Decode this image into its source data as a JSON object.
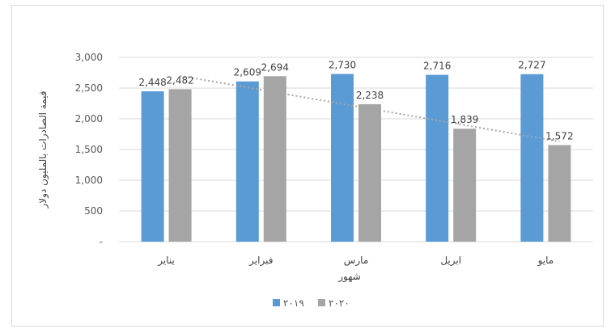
{
  "chart_data": {
    "type": "bar",
    "title": "",
    "xlabel": "شهور",
    "ylabel": "قيمة الصادرات بالمليون دولار",
    "categories": [
      "يناير",
      "فبراير",
      "مارس",
      "ابريل",
      "مايو"
    ],
    "series": [
      {
        "name": "٢٠١٩",
        "values": [
          2448,
          2609,
          2730,
          2716,
          2727
        ],
        "labels": [
          "2,448",
          "2,609",
          "2,730",
          "2,716",
          "2,727"
        ],
        "color": "#5b9bd5"
      },
      {
        "name": "٢٠٢٠",
        "values": [
          2482,
          2694,
          2238,
          1839,
          1572
        ],
        "labels": [
          "2,482",
          "2,694",
          "2,238",
          "1,839",
          "1,572"
        ],
        "color": "#a5a5a5"
      }
    ],
    "trendline": {
      "series": "٢٠٢٠",
      "type": "linear",
      "style": "dotted",
      "color": "#a5a5a5"
    },
    "ylim": [
      0,
      3000
    ],
    "yticks": [
      0,
      500,
      1000,
      1500,
      2000,
      2500,
      3000
    ],
    "ytick_labels": [
      "-",
      "500",
      "1,000",
      "1,500",
      "2,000",
      "2,500",
      "3,000"
    ],
    "grid": true,
    "legend": "bottom"
  }
}
